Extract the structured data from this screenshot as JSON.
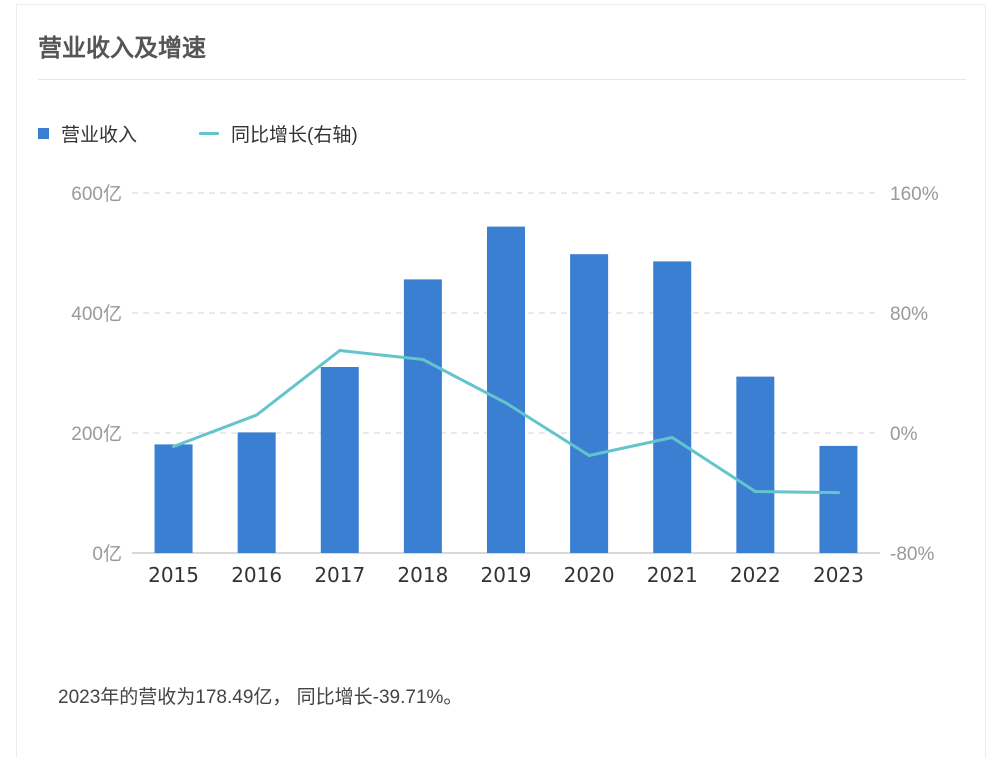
{
  "title": "营业收入及增速",
  "legend": {
    "bar_label": "营业收入",
    "line_label": "同比增长(右轴)"
  },
  "summary": "2023年的营收为178.49亿， 同比增长-39.71%。",
  "colors": {
    "bar": "#3b7fd2",
    "line": "#63c4cc",
    "grid": "#e3e3e3",
    "axis_text": "#999999"
  },
  "chart_data": {
    "type": "bar",
    "title": "营业收入及增速",
    "categories": [
      "2015",
      "2016",
      "2017",
      "2018",
      "2019",
      "2020",
      "2021",
      "2022",
      "2023"
    ],
    "series": [
      {
        "name": "营业收入",
        "type": "bar",
        "axis": "left",
        "values": [
          181,
          201,
          310,
          456,
          544,
          498,
          486,
          294,
          178.49
        ]
      },
      {
        "name": "同比增长(右轴)",
        "type": "line",
        "axis": "right",
        "values": [
          -9,
          12,
          55,
          49,
          20,
          -15,
          -3,
          -39,
          -39.71
        ]
      }
    ],
    "y_left": {
      "min": 0,
      "max": 600,
      "ticks": [
        0,
        200,
        400,
        600
      ],
      "tick_labels": [
        "0亿",
        "200亿",
        "400亿",
        "600亿"
      ]
    },
    "y_right": {
      "min": -80,
      "max": 160,
      "ticks": [
        -80,
        0,
        80,
        160
      ],
      "tick_labels": [
        "-80%",
        "0%",
        "80%",
        "160%"
      ]
    },
    "grid": true,
    "legend_position": "top-left"
  }
}
